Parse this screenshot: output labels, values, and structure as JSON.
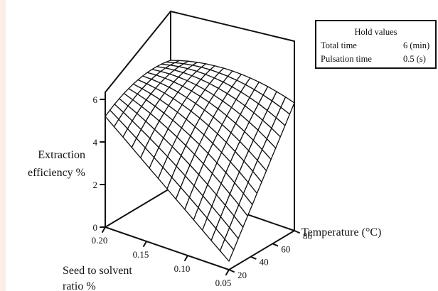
{
  "chart_data": {
    "type": "surface3d",
    "title": "",
    "zlabel": [
      "Extraction",
      "efficiency %"
    ],
    "xlabel": [
      "Seed to solvent",
      "ratio %"
    ],
    "ylabel": "Temperature (°C)",
    "x_ticks": [
      "0.20",
      "0.15",
      "0.10",
      "0.05"
    ],
    "y_ticks": [
      "20",
      "40",
      "60",
      "80"
    ],
    "z_ticks": [
      "0",
      "2",
      "4",
      "6"
    ],
    "xlim": [
      0.2,
      0.05
    ],
    "ylim": [
      20,
      80
    ],
    "zlim": [
      0,
      6
    ],
    "grid_resolution": 14,
    "surface_model": {
      "description": "quadratic response surface",
      "corners": {
        "ratio_0.20_temp_20": 5.2,
        "ratio_0.20_temp_80": 6.0,
        "ratio_0.05_temp_80": 6.0,
        "ratio_0.05_temp_20": 0.4
      },
      "center_value": 5.2,
      "axis_midpoints": {
        "ratio_0.20_temp_50": 6.0,
        "ratio_0.125_temp_80": 6.5,
        "ratio_0.05_temp_50": 3.2,
        "ratio_0.125_temp_20": 2.8
      }
    },
    "line_color": "#111111",
    "surface_fill": "#ffffff"
  },
  "hold_values": {
    "title": "Hold values",
    "rows": [
      {
        "label": "Total time",
        "value": "6 (min)"
      },
      {
        "label": "Pulsation time",
        "value": "0.5 (s)"
      }
    ]
  }
}
